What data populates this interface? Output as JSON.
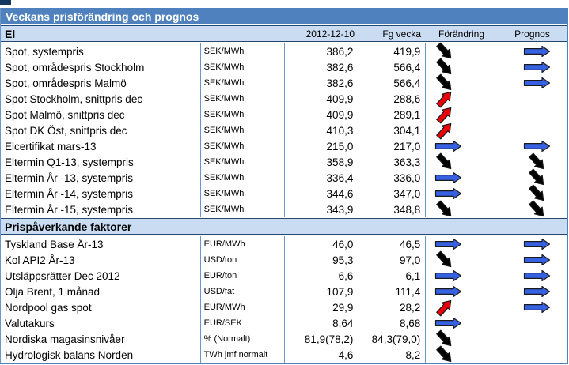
{
  "title": "Veckans prisförändring och prognos",
  "header": {
    "date": "2012-12-10",
    "prev_week": "Fg vecka",
    "change": "Förändring",
    "forecast": "Prognos"
  },
  "arrows": {
    "colors": {
      "arrow-right": "#3761e3",
      "arrow-down": "#000000",
      "arrow-up": "#e8000b"
    }
  },
  "colors": {
    "title_bg": "#4e81bd",
    "band_bg": "#c9dcf2",
    "border_blue": "#6b96cc"
  },
  "sections": [
    {
      "label": "El",
      "rows": [
        {
          "name": "Spot, systempris",
          "unit": "SEK/MWh",
          "current": "386,2",
          "prev": "419,9",
          "change": "arrow-down",
          "forecast": "arrow-right"
        },
        {
          "name": "Spot, områdespris Stockholm",
          "unit": "SEK/MWh",
          "current": "382,6",
          "prev": "566,4",
          "change": "arrow-down",
          "forecast": "arrow-right"
        },
        {
          "name": "Spot, områdespris Malmö",
          "unit": "SEK/MWh",
          "current": "382,6",
          "prev": "566,4",
          "change": "arrow-down",
          "forecast": "arrow-right"
        },
        {
          "name": "Spot Stockholm, snittpris dec",
          "unit": "SEK/MWh",
          "current": "409,9",
          "prev": "288,6",
          "change": "arrow-up",
          "forecast": "none"
        },
        {
          "name": "Spot Malmö, snittpris dec",
          "unit": "SEK/MWh",
          "current": "409,9",
          "prev": "289,1",
          "change": "arrow-up",
          "forecast": "none"
        },
        {
          "name": "Spot DK Öst, snittpris dec",
          "unit": "SEK/MWh",
          "current": "410,3",
          "prev": "304,1",
          "change": "arrow-up",
          "forecast": "none"
        },
        {
          "name": "Elcertifikat mars-13",
          "unit": "SEK/MWh",
          "current": "215,0",
          "prev": "217,0",
          "change": "arrow-right",
          "forecast": "arrow-right"
        },
        {
          "name": "Eltermin Q1-13, systempris",
          "unit": "SEK/MWh",
          "current": "358,9",
          "prev": "363,3",
          "change": "arrow-down",
          "forecast": "arrow-down"
        },
        {
          "name": "Eltermin År -13, systempris",
          "unit": "SEK/MWh",
          "current": "336,4",
          "prev": "336,0",
          "change": "arrow-right",
          "forecast": "arrow-down"
        },
        {
          "name": "Eltermin År -14, systempris",
          "unit": "SEK/MWh",
          "current": "344,6",
          "prev": "347,0",
          "change": "arrow-right",
          "forecast": "arrow-down"
        },
        {
          "name": "Eltermin År -15, systempris",
          "unit": "SEK/MWh",
          "current": "343,9",
          "prev": "348,8",
          "change": "arrow-down",
          "forecast": "arrow-down"
        }
      ]
    },
    {
      "label": "Prispåverkande faktorer",
      "rows": [
        {
          "name": "Tyskland Base År-13",
          "unit": "EUR/MWh",
          "current": "46,0",
          "prev": "46,5",
          "change": "arrow-right",
          "forecast": "arrow-right"
        },
        {
          "name": "Kol API2 År-13",
          "unit": "USD/ton",
          "current": "95,3",
          "prev": "97,0",
          "change": "arrow-down",
          "forecast": "arrow-right"
        },
        {
          "name": "Utsläppsrätter Dec 2012",
          "unit": "EUR/ton",
          "current": "6,6",
          "prev": "6,1",
          "change": "arrow-right",
          "forecast": "arrow-right"
        },
        {
          "name": "Olja Brent, 1 månad",
          "unit": "USD/fat",
          "current": "107,9",
          "prev": "111,4",
          "change": "arrow-right",
          "forecast": "arrow-right"
        },
        {
          "name": "Nordpool gas spot",
          "unit": "EUR/MWh",
          "current": "29,9",
          "prev": "28,2",
          "change": "arrow-up",
          "forecast": "arrow-right"
        },
        {
          "name": "Valutakurs",
          "unit": "EUR/SEK",
          "current": "8,64",
          "prev": "8,68",
          "change": "arrow-right",
          "forecast": "none"
        },
        {
          "name": "Nordiska magasinsnivåer",
          "unit": "% (Normalt)",
          "current": "81,9(78,2)",
          "prev": "84,3(79,0)",
          "change": "arrow-down",
          "forecast": "none"
        },
        {
          "name": "Hydrologisk balans Norden",
          "unit": "TWh jmf normalt",
          "current": "4,6",
          "prev": "8,2",
          "change": "arrow-down",
          "forecast": "none"
        }
      ]
    }
  ]
}
